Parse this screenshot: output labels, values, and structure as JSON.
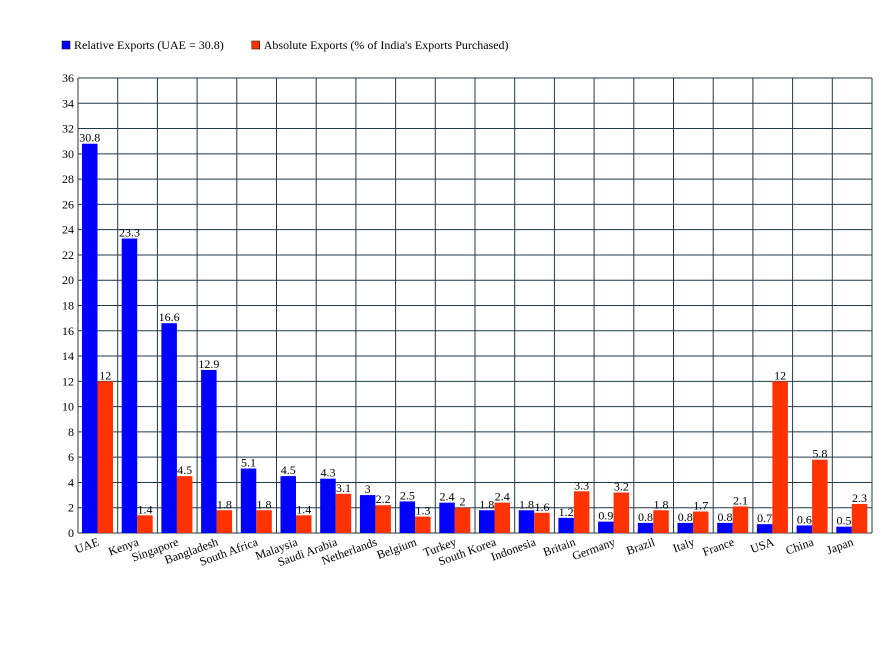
{
  "chart_data": {
    "type": "bar",
    "categories": [
      "UAE",
      "Kenya",
      "Singapore",
      "Bangladesh",
      "South Africa",
      "Malaysia",
      "Saudi Arabia",
      "Netherlands",
      "Belgium",
      "Turkey",
      "South Korea",
      "Indonesia",
      "Britain",
      "Germany",
      "Brazil",
      "Italy",
      "France",
      "USA",
      "China",
      "Japan"
    ],
    "series": [
      {
        "name": "Relative Exports (UAE = 30.8)",
        "color": "#0000ff",
        "values": [
          30.8,
          23.3,
          16.6,
          12.9,
          5.1,
          4.5,
          4.3,
          3,
          2.5,
          2.4,
          1.8,
          1.8,
          1.2,
          0.9,
          0.8,
          0.8,
          0.8,
          0.7,
          0.6,
          0.5
        ]
      },
      {
        "name": "Absolute Exports (% of India's Exports Purchased)",
        "color": "#ff3300",
        "values": [
          12,
          1.4,
          4.5,
          1.8,
          1.8,
          1.4,
          3.1,
          2.2,
          1.3,
          2,
          2.4,
          1.6,
          3.3,
          3.2,
          1.8,
          1.7,
          2.1,
          12,
          5.8,
          2.3
        ]
      }
    ],
    "ylim": [
      0,
      36
    ],
    "yticks": [
      0,
      2,
      4,
      6,
      8,
      10,
      12,
      14,
      16,
      18,
      20,
      22,
      24,
      26,
      28,
      30,
      32,
      34,
      36
    ],
    "grid": true
  }
}
